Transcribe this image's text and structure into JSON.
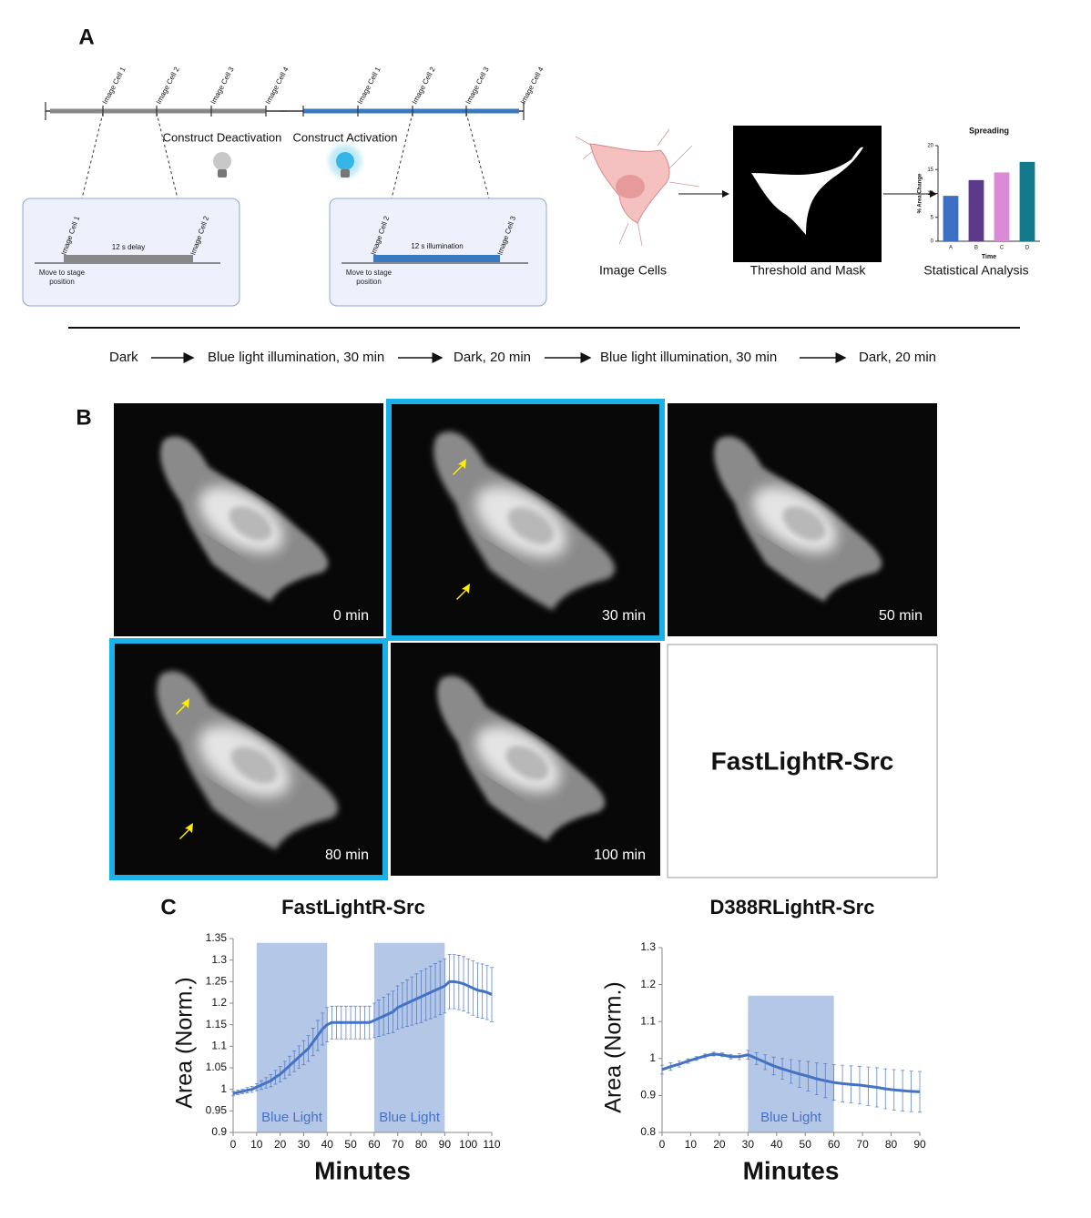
{
  "panel_a": {
    "label": "A",
    "timeline": {
      "deactivation_cells": [
        "Image Cell 1",
        "Image Cell 2",
        "Image Cell 3",
        "Image Cell 4"
      ],
      "ellipsis": "...",
      "activation_cells": [
        "Image Cell 1",
        "Image Cell 2",
        "Image Cell 3",
        "Image Cell 4"
      ],
      "deactivation_label": "Construct Deactivation",
      "activation_label": "Construct Activation"
    },
    "delay_box": {
      "start_label": "Image Cell 1",
      "end_label": "Image Cell 2",
      "bar_label": "12 s delay",
      "move_label": "Move to stage position"
    },
    "illumination_box": {
      "start_label": "Image Cell 2",
      "end_label": "Image Cell 3",
      "bar_label": "12 s illumination",
      "move_label": "Move to stage position"
    },
    "pipeline": [
      "Image Cells",
      "Threshold and Mask",
      "Statistical Analysis"
    ]
  },
  "protocol": [
    {
      "text": "Dark",
      "light": false
    },
    {
      "text": "Blue light illumination, 30 min",
      "light": true
    },
    {
      "text": "Dark, 20 min",
      "light": false
    },
    {
      "text": "Blue light illumination, 30 min",
      "light": true
    },
    {
      "text": "Dark, 20 min",
      "light": false
    }
  ],
  "panel_b": {
    "label": "B",
    "frames": [
      {
        "time": "0 min",
        "illuminated": false
      },
      {
        "time": "30 min",
        "illuminated": true
      },
      {
        "time": "50 min",
        "illuminated": false
      },
      {
        "time": "80 min",
        "illuminated": true
      },
      {
        "time": "100 min",
        "illuminated": false
      }
    ],
    "construct": "FastLightR-Src"
  },
  "panel_c": {
    "label": "C"
  },
  "chart_data": [
    {
      "type": "bar",
      "title": "Spreading",
      "categories": [
        "A",
        "B",
        "C",
        "D"
      ],
      "values": [
        9.5,
        12.8,
        14.4,
        16.6
      ],
      "colors": [
        "#3b6fc4",
        "#5b3a8c",
        "#d98bd6",
        "#137a8c"
      ],
      "ylim": [
        0,
        20
      ],
      "yticks": [
        0,
        5,
        10,
        15,
        20
      ],
      "y_label": "% Area Change",
      "x_label": "Time"
    },
    {
      "type": "line",
      "title": "FastLightR-Src",
      "x": [
        0,
        2,
        4,
        6,
        8,
        10,
        12,
        14,
        16,
        18,
        20,
        22,
        24,
        26,
        28,
        30,
        32,
        34,
        36,
        38,
        40,
        42,
        44,
        46,
        48,
        50,
        52,
        54,
        56,
        58,
        60,
        62,
        64,
        66,
        68,
        70,
        72,
        74,
        76,
        78,
        80,
        82,
        84,
        86,
        88,
        90,
        92,
        94,
        96,
        98,
        100,
        102,
        104,
        106,
        108,
        110
      ],
      "series": [
        {
          "color": "#4472c4",
          "values": [
            0.99,
            0.993,
            0.995,
            0.998,
            1.0,
            1.005,
            1.01,
            1.015,
            1.02,
            1.028,
            1.035,
            1.045,
            1.055,
            1.065,
            1.075,
            1.085,
            1.095,
            1.11,
            1.125,
            1.14,
            1.15,
            1.155,
            1.155,
            1.155,
            1.155,
            1.155,
            1.155,
            1.155,
            1.155,
            1.155,
            1.16,
            1.165,
            1.17,
            1.175,
            1.18,
            1.19,
            1.195,
            1.2,
            1.205,
            1.21,
            1.215,
            1.22,
            1.225,
            1.23,
            1.235,
            1.24,
            1.25,
            1.25,
            1.248,
            1.245,
            1.24,
            1.235,
            1.23,
            1.228,
            1.225,
            1.22
          ],
          "errors": [
            0.005,
            0.005,
            0.005,
            0.006,
            0.007,
            0.008,
            0.01,
            0.012,
            0.014,
            0.016,
            0.018,
            0.02,
            0.022,
            0.024,
            0.026,
            0.028,
            0.03,
            0.032,
            0.035,
            0.037,
            0.04,
            0.038,
            0.038,
            0.038,
            0.038,
            0.038,
            0.038,
            0.038,
            0.038,
            0.038,
            0.04,
            0.042,
            0.044,
            0.046,
            0.048,
            0.05,
            0.052,
            0.054,
            0.056,
            0.058,
            0.06,
            0.06,
            0.061,
            0.062,
            0.062,
            0.063,
            0.063,
            0.063,
            0.063,
            0.063,
            0.063,
            0.063,
            0.063,
            0.063,
            0.063,
            0.063
          ]
        }
      ],
      "xlim": [
        0,
        110
      ],
      "xticks": [
        0,
        10,
        20,
        30,
        40,
        50,
        60,
        70,
        80,
        90,
        100,
        110
      ],
      "ylim": [
        0.9,
        1.35
      ],
      "yticks": [
        0.9,
        0.95,
        1,
        1.05,
        1.1,
        1.15,
        1.2,
        1.25,
        1.3,
        1.35
      ],
      "x_label": "Minutes",
      "y_label": "Area (Norm.)",
      "light_periods": [
        {
          "start": 10,
          "end": 40,
          "label": "Blue Light"
        },
        {
          "start": 60,
          "end": 90,
          "label": "Blue Light"
        }
      ],
      "light_top": 1.34
    },
    {
      "type": "line",
      "title": "D388RLightR-Src",
      "x": [
        0,
        3,
        6,
        9,
        12,
        15,
        18,
        21,
        24,
        27,
        30,
        33,
        36,
        39,
        42,
        45,
        48,
        51,
        54,
        57,
        60,
        63,
        66,
        69,
        72,
        75,
        78,
        81,
        84,
        87,
        90
      ],
      "series": [
        {
          "color": "#4472c4",
          "values": [
            0.97,
            0.978,
            0.985,
            0.993,
            1.0,
            1.007,
            1.012,
            1.01,
            1.005,
            1.005,
            1.01,
            1.0,
            0.99,
            0.98,
            0.972,
            0.965,
            0.958,
            0.952,
            0.945,
            0.94,
            0.935,
            0.932,
            0.93,
            0.928,
            0.925,
            0.922,
            0.918,
            0.915,
            0.913,
            0.911,
            0.91
          ],
          "errors": [
            0.012,
            0.01,
            0.008,
            0.006,
            0.005,
            0.005,
            0.005,
            0.005,
            0.006,
            0.008,
            0.012,
            0.016,
            0.02,
            0.024,
            0.028,
            0.032,
            0.036,
            0.04,
            0.043,
            0.046,
            0.048,
            0.05,
            0.05,
            0.051,
            0.052,
            0.053,
            0.054,
            0.055,
            0.055,
            0.055,
            0.055
          ]
        }
      ],
      "xlim": [
        0,
        90
      ],
      "xticks": [
        0,
        10,
        20,
        30,
        40,
        50,
        60,
        70,
        80,
        90
      ],
      "ylim": [
        0.8,
        1.3
      ],
      "yticks": [
        0.8,
        0.9,
        1,
        1.1,
        1.2,
        1.3
      ],
      "x_label": "Minutes",
      "y_label": "Area (Norm.)",
      "light_periods": [
        {
          "start": 30,
          "end": 60,
          "label": "Blue Light"
        }
      ],
      "light_top": 1.17
    }
  ]
}
